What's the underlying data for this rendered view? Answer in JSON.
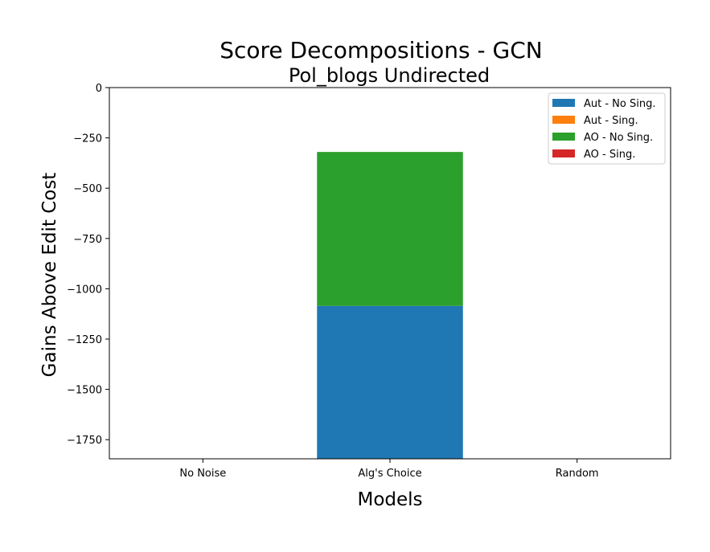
{
  "chart_data": {
    "type": "bar",
    "stacked": true,
    "title": "Score Decompositions - GCN",
    "subtitle": "Pol_blogs Undirected",
    "xlabel": "Models",
    "ylabel": "Gains Above Edit Cost",
    "categories": [
      "No Noise",
      "Alg's Choice",
      "Random"
    ],
    "ylim": [
      -1845,
      0
    ],
    "yticks": [
      0,
      -250,
      -500,
      -750,
      -1000,
      -1250,
      -1500,
      -1750
    ],
    "ytick_labels": [
      "0",
      "−250",
      "−500",
      "−750",
      "−1000",
      "−1250",
      "−1500",
      "−1750"
    ],
    "series": [
      {
        "name": "Aut - No Sing.",
        "color": "#1f77b4",
        "segments": [
          [
            0,
            0
          ],
          [
            -1085,
            -1845
          ],
          [
            0,
            0
          ]
        ]
      },
      {
        "name": "Aut - Sing.",
        "color": "#ff7f0e",
        "segments": [
          [
            0,
            0
          ],
          [
            0,
            0
          ],
          [
            0,
            0
          ]
        ]
      },
      {
        "name": "AO - No Sing.",
        "color": "#2ca02c",
        "segments": [
          [
            0,
            0
          ],
          [
            -320,
            -1085
          ],
          [
            0,
            0
          ]
        ]
      },
      {
        "name": "AO - Sing.",
        "color": "#d62728",
        "segments": [
          [
            0,
            0
          ],
          [
            0,
            0
          ],
          [
            0,
            0
          ]
        ]
      }
    ],
    "grid": false,
    "legend_position": "top-right"
  }
}
